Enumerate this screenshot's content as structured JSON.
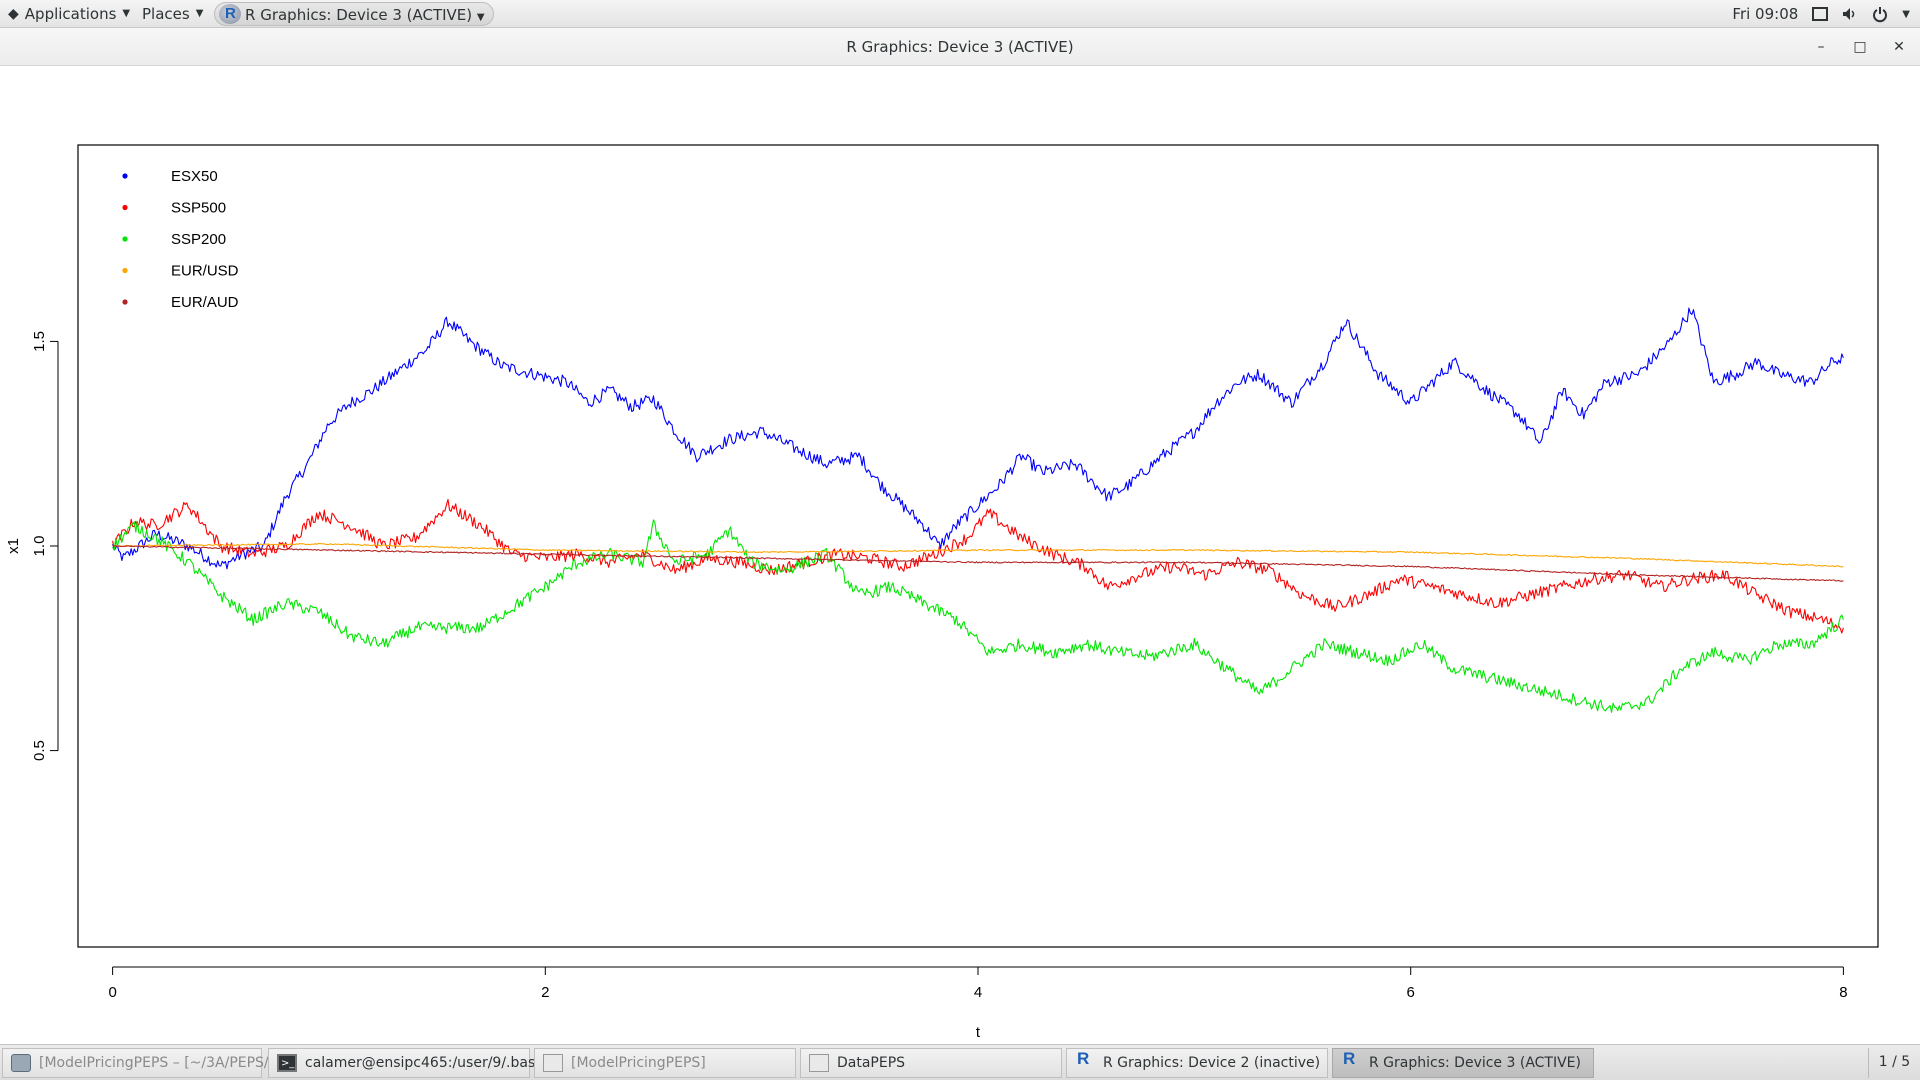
{
  "panel": {
    "applications": "Applications",
    "places": "Places",
    "active_app": "R Graphics: Device 3 (ACTIVE)",
    "clock": "Fri 09:08"
  },
  "window": {
    "title": "R Graphics: Device 3 (ACTIVE)"
  },
  "chart_data": {
    "type": "line",
    "title": "",
    "xlabel": "t",
    "ylabel": "x1",
    "xlim": [
      -0.16,
      8.16
    ],
    "ylim": [
      0.02,
      1.98
    ],
    "xticks": [
      "0",
      "2",
      "4",
      "6",
      "8"
    ],
    "yticks": [
      "0.5",
      "1.0",
      "1.5"
    ],
    "legend_position": "top-left",
    "series": [
      {
        "name": "ESX50",
        "color": "#0000ff",
        "x": [
          0,
          0.05,
          0.2,
          0.35,
          0.5,
          0.6,
          0.7,
          0.8,
          0.9,
          1.0,
          1.1,
          1.2,
          1.3,
          1.45,
          1.55,
          1.65,
          1.8,
          1.95,
          2.1,
          2.2,
          2.3,
          2.4,
          2.5,
          2.6,
          2.7,
          2.85,
          3.0,
          3.15,
          3.3,
          3.45,
          3.55,
          3.65,
          3.75,
          3.82,
          3.9,
          4.0,
          4.1,
          4.2,
          4.3,
          4.45,
          4.6,
          4.7,
          4.85,
          5.0,
          5.1,
          5.2,
          5.3,
          5.45,
          5.6,
          5.7,
          5.85,
          6.0,
          6.1,
          6.2,
          6.35,
          6.5,
          6.6,
          6.7,
          6.8,
          6.9,
          7.05,
          7.2,
          7.3,
          7.4,
          7.5,
          7.6,
          7.7,
          7.85,
          7.95,
          8.0
        ],
        "y": [
          1.0,
          0.97,
          1.03,
          1.0,
          0.95,
          0.98,
          1.0,
          1.12,
          1.2,
          1.3,
          1.35,
          1.38,
          1.42,
          1.48,
          1.55,
          1.5,
          1.44,
          1.42,
          1.4,
          1.35,
          1.38,
          1.34,
          1.36,
          1.28,
          1.22,
          1.26,
          1.28,
          1.24,
          1.2,
          1.22,
          1.15,
          1.1,
          1.05,
          1.0,
          1.05,
          1.1,
          1.15,
          1.22,
          1.18,
          1.2,
          1.12,
          1.15,
          1.22,
          1.28,
          1.35,
          1.4,
          1.42,
          1.35,
          1.45,
          1.55,
          1.42,
          1.35,
          1.4,
          1.45,
          1.38,
          1.32,
          1.25,
          1.38,
          1.32,
          1.4,
          1.42,
          1.5,
          1.58,
          1.4,
          1.42,
          1.45,
          1.42,
          1.4,
          1.45,
          1.46
        ]
      },
      {
        "name": "SSP500",
        "color": "#ff0000",
        "x": [
          0,
          0.1,
          0.2,
          0.35,
          0.5,
          0.65,
          0.8,
          0.95,
          1.1,
          1.25,
          1.4,
          1.55,
          1.7,
          1.85,
          2.0,
          2.15,
          2.3,
          2.45,
          2.6,
          2.75,
          2.9,
          3.05,
          3.2,
          3.35,
          3.5,
          3.65,
          3.8,
          3.95,
          4.05,
          4.2,
          4.35,
          4.5,
          4.6,
          4.75,
          4.9,
          5.05,
          5.2,
          5.35,
          5.5,
          5.65,
          5.8,
          5.95,
          6.1,
          6.25,
          6.4,
          6.55,
          6.7,
          6.85,
          7.0,
          7.15,
          7.3,
          7.45,
          7.6,
          7.75,
          7.9,
          8.0
        ],
        "y": [
          1.0,
          1.06,
          1.05,
          1.1,
          1.0,
          0.98,
          1.0,
          1.08,
          1.05,
          1.0,
          1.02,
          1.1,
          1.05,
          0.98,
          0.97,
          0.98,
          0.96,
          0.98,
          0.94,
          0.97,
          0.96,
          0.94,
          0.96,
          0.98,
          0.97,
          0.95,
          0.98,
          1.02,
          1.08,
          1.02,
          0.98,
          0.95,
          0.9,
          0.93,
          0.95,
          0.93,
          0.96,
          0.94,
          0.88,
          0.85,
          0.88,
          0.92,
          0.9,
          0.88,
          0.86,
          0.88,
          0.9,
          0.92,
          0.93,
          0.9,
          0.92,
          0.93,
          0.88,
          0.84,
          0.82,
          0.8
        ]
      },
      {
        "name": "SSP200",
        "color": "#00e600",
        "x": [
          0,
          0.1,
          0.2,
          0.35,
          0.5,
          0.65,
          0.8,
          0.95,
          1.1,
          1.25,
          1.4,
          1.55,
          1.7,
          1.85,
          2.0,
          2.15,
          2.3,
          2.45,
          2.5,
          2.6,
          2.75,
          2.85,
          2.95,
          3.1,
          3.3,
          3.45,
          3.6,
          3.75,
          3.9,
          4.05,
          4.2,
          4.35,
          4.5,
          4.65,
          4.8,
          5.0,
          5.15,
          5.3,
          5.45,
          5.6,
          5.75,
          5.9,
          6.05,
          6.2,
          6.35,
          6.5,
          6.65,
          6.8,
          6.95,
          7.1,
          7.25,
          7.4,
          7.55,
          7.7,
          7.85,
          8.0
        ],
        "y": [
          1.0,
          1.05,
          1.02,
          0.96,
          0.88,
          0.82,
          0.86,
          0.84,
          0.78,
          0.76,
          0.8,
          0.8,
          0.8,
          0.85,
          0.9,
          0.96,
          0.98,
          0.96,
          1.05,
          0.96,
          0.98,
          1.04,
          0.96,
          0.94,
          0.98,
          0.88,
          0.9,
          0.86,
          0.82,
          0.74,
          0.76,
          0.74,
          0.76,
          0.74,
          0.73,
          0.76,
          0.7,
          0.64,
          0.7,
          0.76,
          0.74,
          0.72,
          0.76,
          0.7,
          0.68,
          0.66,
          0.64,
          0.62,
          0.6,
          0.62,
          0.7,
          0.74,
          0.72,
          0.76,
          0.76,
          0.82
        ]
      },
      {
        "name": "EUR/USD",
        "color": "#ffa500",
        "x": [
          0,
          1,
          2,
          3,
          4,
          5,
          6,
          7,
          8
        ],
        "y": [
          1.0,
          1.005,
          0.99,
          0.985,
          0.99,
          0.99,
          0.985,
          0.97,
          0.95
        ]
      },
      {
        "name": "EUR/AUD",
        "color": "#b22222",
        "x": [
          0,
          1,
          2,
          3,
          4,
          5,
          6,
          7,
          8
        ],
        "y": [
          1.0,
          0.99,
          0.98,
          0.97,
          0.96,
          0.96,
          0.95,
          0.93,
          0.915
        ]
      }
    ]
  },
  "taskbar": {
    "tasks": [
      "[ModelPricingPEPS – [~/3A/PEPS/...",
      "calamer@ensipc465:/user/9/.base...",
      "[ModelPricingPEPS]",
      "DataPEPS",
      "R Graphics: Device 2 (inactive)",
      "R Graphics: Device 3 (ACTIVE)"
    ],
    "workspace": "1 / 5"
  }
}
